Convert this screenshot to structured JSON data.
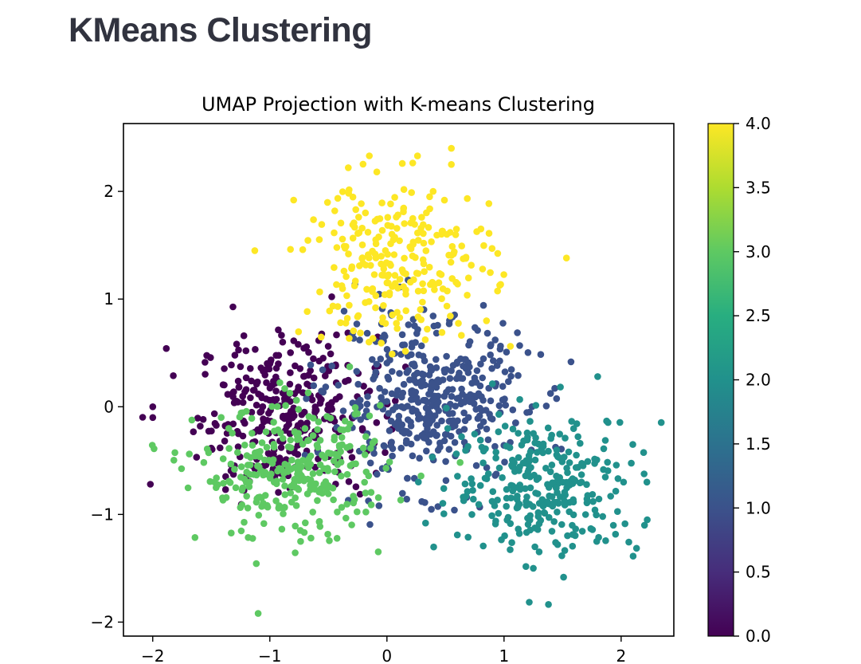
{
  "page": {
    "title": "KMeans Clustering"
  },
  "chart_data": {
    "type": "scatter",
    "title": "UMAP Projection with K-means Clustering",
    "xlabel": "",
    "ylabel": "",
    "xlim": [
      -2.25,
      2.45
    ],
    "ylim": [
      -2.13,
      2.63
    ],
    "xticks": [
      -2,
      -1,
      0,
      1,
      2
    ],
    "yticks": [
      -2,
      -1,
      0,
      1,
      2
    ],
    "xtick_labels": [
      "−2",
      "−1",
      "0",
      "1",
      "2"
    ],
    "ytick_labels": [
      "−2",
      "−1",
      "0",
      "1",
      "2"
    ],
    "colorbar": {
      "range": [
        0.0,
        4.0
      ],
      "ticks": [
        0.0,
        0.5,
        1.0,
        1.5,
        2.0,
        2.5,
        3.0,
        3.5,
        4.0
      ],
      "tick_labels": [
        "0.0",
        "0.5",
        "1.0",
        "1.5",
        "2.0",
        "2.5",
        "3.0",
        "3.5",
        "4.0"
      ]
    },
    "clusters": [
      {
        "label": 0,
        "color": "#440154",
        "center": [
          -0.85,
          -0.05
        ],
        "spread": [
          0.38,
          0.36
        ],
        "count": 330
      },
      {
        "label": 1,
        "color": "#3b528b",
        "center": [
          0.35,
          0.05
        ],
        "spread": [
          0.42,
          0.38
        ],
        "count": 420
      },
      {
        "label": 2,
        "color": "#21918c",
        "center": [
          1.35,
          -0.72
        ],
        "spread": [
          0.4,
          0.33
        ],
        "count": 300
      },
      {
        "label": 3,
        "color": "#5ec962",
        "center": [
          -0.8,
          -0.62
        ],
        "spread": [
          0.4,
          0.3
        ],
        "count": 300
      },
      {
        "label": 4,
        "color": "#fde725",
        "center": [
          0.1,
          1.35
        ],
        "spread": [
          0.4,
          0.38
        ],
        "count": 260
      }
    ],
    "extra_points": [
      {
        "x": -2.02,
        "y": -0.72,
        "cluster": 0
      },
      {
        "x": -2.0,
        "y": 0.0,
        "cluster": 0
      },
      {
        "x": -2.0,
        "y": -0.1,
        "cluster": 0
      },
      {
        "x": -1.1,
        "y": -1.92,
        "cluster": 3
      },
      {
        "x": -0.33,
        "y": 2.22,
        "cluster": 4
      },
      {
        "x": -0.15,
        "y": 2.33,
        "cluster": 4
      },
      {
        "x": 0.55,
        "y": 2.4,
        "cluster": 4
      },
      {
        "x": 0.55,
        "y": 2.25,
        "cluster": 4
      },
      {
        "x": 1.8,
        "y": 0.28,
        "cluster": 2
      },
      {
        "x": 2.22,
        "y": -0.7,
        "cluster": 2
      },
      {
        "x": 2.2,
        "y": -1.1,
        "cluster": 2
      },
      {
        "x": 2.1,
        "y": -0.35,
        "cluster": 2
      },
      {
        "x": 1.25,
        "y": -1.5,
        "cluster": 2
      }
    ]
  }
}
